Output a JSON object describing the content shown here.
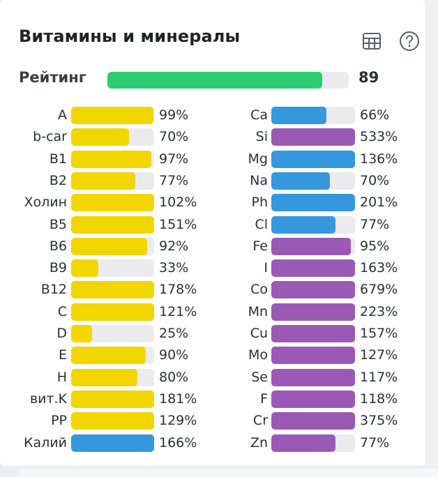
{
  "header": {
    "title": "Витамины и минералы",
    "table_icon": "table-icon",
    "help_icon": "help-circle-icon"
  },
  "rating": {
    "label": "Рейтинг",
    "value": "89",
    "fill_fraction": 0.89,
    "color": "#2ecc71"
  },
  "colors": {
    "vitamin": "#f1d600",
    "mineral_macro": "#3597dc",
    "mineral_micro": "#9b59b6",
    "track": "#ebebed"
  },
  "vitamins": [
    {
      "name": "A",
      "pct": "99%",
      "value": 99,
      "color": "#f1d600"
    },
    {
      "name": "b-car",
      "pct": "70%",
      "value": 70,
      "color": "#f1d600"
    },
    {
      "name": "B1",
      "pct": "97%",
      "value": 97,
      "color": "#f1d600"
    },
    {
      "name": "B2",
      "pct": "77%",
      "value": 77,
      "color": "#f1d600"
    },
    {
      "name": "Холин",
      "pct": "102%",
      "value": 102,
      "color": "#f1d600"
    },
    {
      "name": "B5",
      "pct": "151%",
      "value": 151,
      "color": "#f1d600"
    },
    {
      "name": "B6",
      "pct": "92%",
      "value": 92,
      "color": "#f1d600"
    },
    {
      "name": "B9",
      "pct": "33%",
      "value": 33,
      "color": "#f1d600"
    },
    {
      "name": "B12",
      "pct": "178%",
      "value": 178,
      "color": "#f1d600"
    },
    {
      "name": "C",
      "pct": "121%",
      "value": 121,
      "color": "#f1d600"
    },
    {
      "name": "D",
      "pct": "25%",
      "value": 25,
      "color": "#f1d600"
    },
    {
      "name": "E",
      "pct": "90%",
      "value": 90,
      "color": "#f1d600"
    },
    {
      "name": "H",
      "pct": "80%",
      "value": 80,
      "color": "#f1d600"
    },
    {
      "name": "вит.K",
      "pct": "181%",
      "value": 181,
      "color": "#f1d600"
    },
    {
      "name": "PP",
      "pct": "129%",
      "value": 129,
      "color": "#f1d600"
    },
    {
      "name": "Калий",
      "pct": "166%",
      "value": 166,
      "color": "#3597dc"
    }
  ],
  "minerals": [
    {
      "name": "Ca",
      "pct": "66%",
      "value": 66,
      "color": "#3597dc"
    },
    {
      "name": "Si",
      "pct": "533%",
      "value": 533,
      "color": "#9b59b6"
    },
    {
      "name": "Mg",
      "pct": "136%",
      "value": 136,
      "color": "#3597dc"
    },
    {
      "name": "Na",
      "pct": "70%",
      "value": 70,
      "color": "#3597dc"
    },
    {
      "name": "Ph",
      "pct": "201%",
      "value": 201,
      "color": "#3597dc"
    },
    {
      "name": "Cl",
      "pct": "77%",
      "value": 77,
      "color": "#3597dc"
    },
    {
      "name": "Fe",
      "pct": "95%",
      "value": 95,
      "color": "#9b59b6"
    },
    {
      "name": "I",
      "pct": "163%",
      "value": 163,
      "color": "#9b59b6"
    },
    {
      "name": "Co",
      "pct": "679%",
      "value": 679,
      "color": "#9b59b6"
    },
    {
      "name": "Mn",
      "pct": "223%",
      "value": 223,
      "color": "#9b59b6"
    },
    {
      "name": "Cu",
      "pct": "157%",
      "value": 157,
      "color": "#9b59b6"
    },
    {
      "name": "Mo",
      "pct": "127%",
      "value": 127,
      "color": "#9b59b6"
    },
    {
      "name": "Se",
      "pct": "117%",
      "value": 117,
      "color": "#9b59b6"
    },
    {
      "name": "F",
      "pct": "118%",
      "value": 118,
      "color": "#9b59b6"
    },
    {
      "name": "Cr",
      "pct": "375%",
      "value": 375,
      "color": "#9b59b6"
    },
    {
      "name": "Zn",
      "pct": "77%",
      "value": 77,
      "color": "#9b59b6"
    }
  ]
}
